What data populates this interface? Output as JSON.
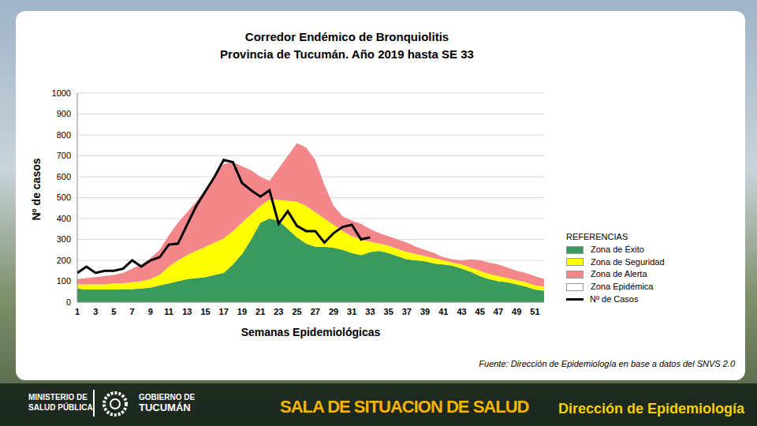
{
  "chart_data": {
    "type": "area",
    "title": "Corredor Endémico de Bronquiolitis",
    "subtitle": "Provincia de Tucumán.  Año 2019 hasta SE 33",
    "x_label": "Semanas Epidemiológicas",
    "y_label": "Nº de casos",
    "stacked": true,
    "grid": true,
    "legend": "right",
    "legend_title": "REFERENCIAS",
    "ylim": [
      0,
      1000
    ],
    "yticks": [
      0,
      100,
      200,
      300,
      400,
      500,
      600,
      700,
      800,
      900,
      1000
    ],
    "categories": [
      "1",
      null,
      "3",
      null,
      "5",
      null,
      "7",
      null,
      "9",
      null,
      "11",
      null,
      "13",
      null,
      "15",
      null,
      "17",
      null,
      "19",
      null,
      "21",
      null,
      "23",
      null,
      "25",
      null,
      "27",
      null,
      "29",
      null,
      "31",
      null,
      "33",
      null,
      "35",
      null,
      "37",
      null,
      "39",
      null,
      "41",
      null,
      "43",
      null,
      "45",
      null,
      "47",
      null,
      "49",
      null,
      "51",
      null
    ],
    "series": [
      {
        "name": "Zona de Éxito",
        "type": "area",
        "color": "#3a9a5e",
        "values": [
          65,
          60,
          60,
          60,
          60,
          62,
          62,
          65,
          70,
          80,
          90,
          100,
          110,
          115,
          120,
          130,
          140,
          180,
          230,
          300,
          380,
          400,
          390,
          350,
          310,
          280,
          265,
          265,
          260,
          250,
          235,
          225,
          240,
          245,
          235,
          220,
          205,
          200,
          195,
          185,
          180,
          175,
          160,
          145,
          125,
          110,
          100,
          95,
          85,
          75,
          60,
          55
        ]
      },
      {
        "name": "Zona de Seguridad",
        "type": "area",
        "color": "#ffff00",
        "values": [
          20,
          25,
          25,
          25,
          30,
          28,
          33,
          35,
          40,
          50,
          80,
          100,
          115,
          130,
          145,
          155,
          165,
          160,
          150,
          120,
          80,
          90,
          100,
          135,
          170,
          180,
          165,
          135,
          110,
          90,
          80,
          75,
          50,
          35,
          35,
          35,
          35,
          30,
          25,
          25,
          20,
          15,
          20,
          20,
          25,
          25,
          25,
          20,
          20,
          20,
          20,
          20
        ]
      },
      {
        "name": "Zona de Alerta",
        "type": "area",
        "color": "#f4878a",
        "values": [
          25,
          30,
          35,
          40,
          40,
          50,
          65,
          80,
          100,
          120,
          150,
          180,
          205,
          235,
          275,
          315,
          355,
          330,
          270,
          210,
          140,
          90,
          150,
          215,
          280,
          280,
          250,
          160,
          90,
          70,
          75,
          75,
          60,
          50,
          45,
          45,
          45,
          35,
          30,
          25,
          15,
          15,
          20,
          40,
          50,
          55,
          55,
          50,
          45,
          45,
          45,
          35
        ]
      },
      {
        "name": "Zona Epidémica",
        "type": "area",
        "color": "#ffffff",
        "values": [
          null,
          null,
          null,
          null,
          null,
          null,
          null,
          null,
          null,
          null,
          null,
          null,
          null,
          null,
          null,
          null,
          null,
          null,
          null,
          null,
          null,
          null,
          null,
          null,
          null,
          null,
          null,
          null,
          null,
          null,
          null,
          null,
          null,
          null,
          null,
          null,
          null,
          null,
          null,
          null,
          null,
          null,
          null,
          null,
          null,
          null,
          null,
          null,
          null,
          null,
          null,
          null
        ]
      },
      {
        "name": "Nº de Casos",
        "type": "line",
        "color": "#000000",
        "values": [
          140,
          170,
          140,
          150,
          150,
          160,
          200,
          170,
          200,
          215,
          275,
          280,
          370,
          460,
          530,
          600,
          680,
          670,
          570,
          535,
          505,
          535,
          375,
          435,
          365,
          340,
          340,
          285,
          330,
          360,
          370,
          300,
          310,
          null,
          null,
          null,
          null,
          null,
          null,
          null,
          null,
          null,
          null,
          null,
          null,
          null,
          null,
          null,
          null,
          null,
          null,
          null
        ]
      }
    ]
  },
  "page": {
    "source": "Fuente: Dirección de Epidemiología en base a datos del SNVS 2.0",
    "ministry": [
      "MINISTERIO DE",
      "SALUD PÚBLICA"
    ],
    "government": [
      "GOBIERNO DE",
      "TUCUMÁN"
    ],
    "banner": "SALA DE SITUACION DE SALUD",
    "department": "Dirección de Epidemiología"
  }
}
